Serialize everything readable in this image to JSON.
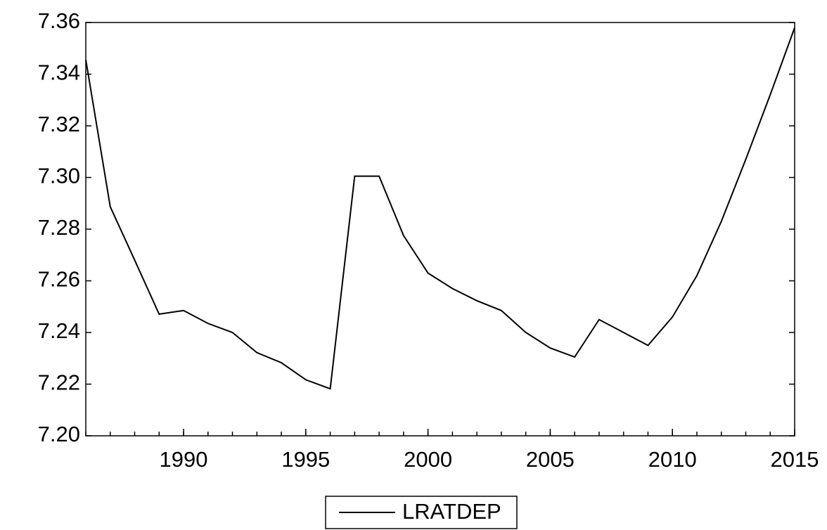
{
  "chart_data": {
    "type": "line",
    "x": [
      1986,
      1987,
      1988,
      1989,
      1990,
      1991,
      1992,
      1993,
      1994,
      1995,
      1996,
      1997,
      1998,
      1999,
      2000,
      2001,
      2002,
      2003,
      2004,
      2005,
      2006,
      2007,
      2008,
      2009,
      2010,
      2011,
      2012,
      2013,
      2014,
      2015
    ],
    "series": [
      {
        "name": "LRATDEP",
        "color": "#000000",
        "values": [
          7.3456,
          7.2887,
          7.268,
          7.2471,
          7.2485,
          7.2435,
          7.24,
          7.2322,
          7.2283,
          7.2217,
          7.2182,
          7.3005,
          7.3005,
          7.2775,
          7.263,
          7.257,
          7.2523,
          7.2485,
          7.24,
          7.234,
          7.2305,
          7.245,
          7.24,
          7.235,
          7.246,
          7.262,
          7.283,
          7.307,
          7.332,
          7.358
        ]
      }
    ],
    "xlim": [
      1986,
      2015
    ],
    "xticks": [
      1990,
      1995,
      2000,
      2005,
      2010,
      2015
    ],
    "ylim": [
      7.2,
      7.36
    ],
    "yticks": [
      {
        "value": 7.2,
        "label": "7.20"
      },
      7.22,
      7.24,
      7.26,
      7.28,
      {
        "value": 7.3,
        "label": "7.30"
      },
      7.32,
      7.34,
      7.36
    ],
    "legend": "bottom"
  }
}
